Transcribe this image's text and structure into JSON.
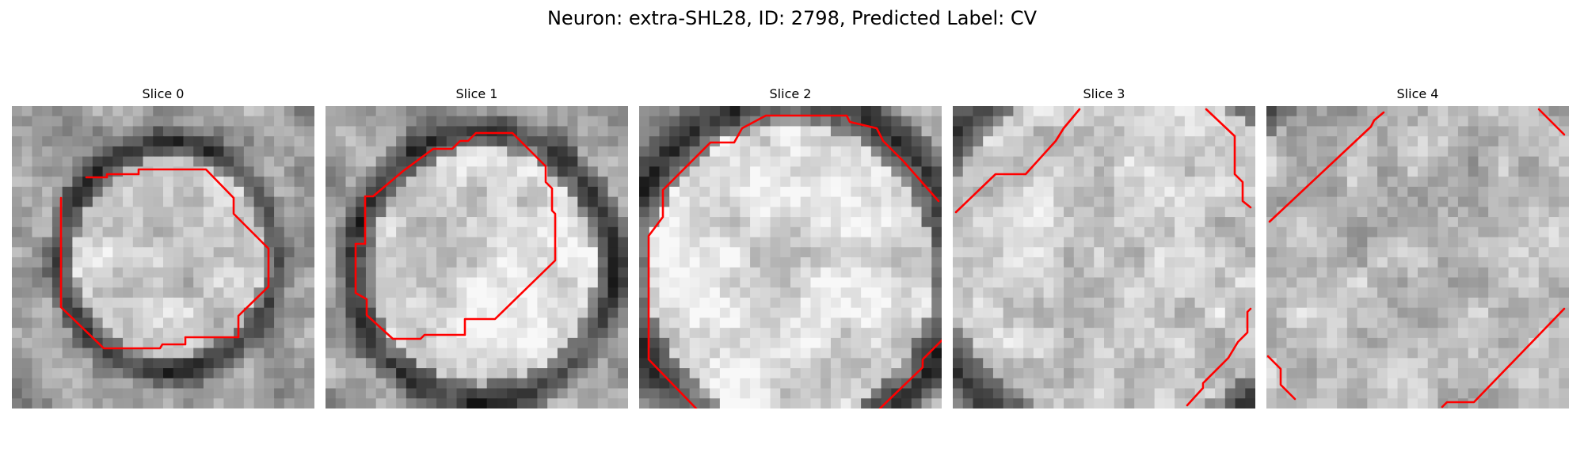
{
  "figure": {
    "title": "Neuron: extra-SHL28, ID: 2798, Predicted Label: CV"
  },
  "colors": {
    "contour": "#ff0000",
    "background": "#ffffff"
  },
  "panels": [
    {
      "title": "Slice 0"
    },
    {
      "title": "Slice 1"
    },
    {
      "title": "Slice 2"
    },
    {
      "title": "Slice 3"
    },
    {
      "title": "Slice 4"
    }
  ]
}
